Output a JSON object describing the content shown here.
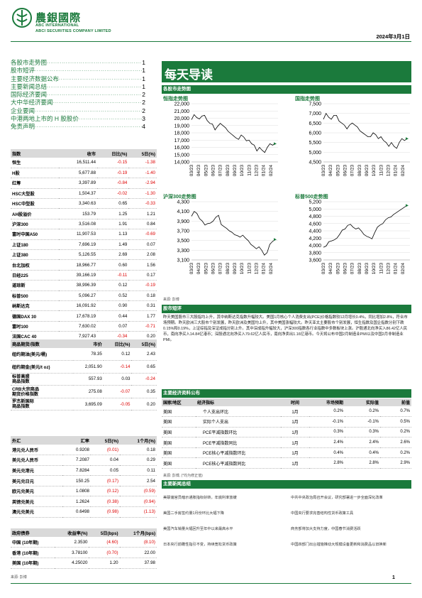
{
  "header": {
    "logo_cn": "農銀國際",
    "logo_en1": "ABC INTERNATIONAL",
    "logo_en2": "ABCI SECURITIES COMPANY LIMITED",
    "date": "2024年3月1日"
  },
  "toc": [
    {
      "t": "各股市走势图",
      "p": "1"
    },
    {
      "t": "股市短评",
      "p": "1"
    },
    {
      "t": "主要经济数据公布",
      "p": "1"
    },
    {
      "t": "主要新闻总结",
      "p": "1"
    },
    {
      "t": "国际经济要闻",
      "p": "2"
    },
    {
      "t": "大中华经济要闻",
      "p": "2"
    },
    {
      "t": "企业要闻",
      "p": "2"
    },
    {
      "t": "中港两地上市的 H 股股价",
      "p": "3"
    },
    {
      "t": "免责声明",
      "p": "4"
    }
  ],
  "index_table": {
    "headers": [
      "指数",
      "收市",
      "日比(%)",
      "5日(%)"
    ],
    "rows": [
      [
        "恒生",
        "16,511.44",
        "-0.15",
        "-1.38"
      ],
      [
        "H股",
        "5,677.88",
        "-0.19",
        "-1.40"
      ],
      [
        "红筹",
        "3,397.89",
        "-0.84",
        "-2.94"
      ],
      [
        "HSC大型股",
        "1,504.37",
        "-0.02",
        "-1.30"
      ],
      [
        "HSC中型股",
        "3,340.63",
        "0.65",
        "-0.33"
      ],
      [
        "AH股溢价",
        "153.79",
        "1.25",
        "1.21"
      ],
      [
        "沪深300",
        "3,516.08",
        "1.91",
        "0.84"
      ],
      [
        "富时中国A50",
        "11,907.53",
        "1.13",
        "-0.69"
      ],
      [
        "上证180",
        "7,696.19",
        "1.49",
        "0.07"
      ],
      [
        "上证380",
        "5,126.55",
        "2.69",
        "2.08"
      ],
      [
        "台北加权",
        "18,966.77",
        "0.60",
        "1.56"
      ],
      [
        "日经225",
        "39,166.19",
        "-0.11",
        "0.17"
      ],
      [
        "道琼斯",
        "38,996.39",
        "0.12",
        "-0.19"
      ],
      [
        "标普500",
        "5,096.27",
        "0.52",
        "0.18"
      ],
      [
        "纳斯达克",
        "16,091.92",
        "0.90",
        "0.31"
      ],
      [
        "德国DAX 30",
        "17,678.19",
        "0.44",
        "1.77"
      ],
      [
        "富时100",
        "7,630.02",
        "0.07",
        "-0.71"
      ],
      [
        "法国CAC 40",
        "7,927.43",
        "-0.34",
        "0.20"
      ]
    ]
  },
  "commodity_table": {
    "headers": [
      "商品期货/指数",
      "市价",
      "日比(%)",
      "5日(%)"
    ],
    "rows": [
      [
        "纽约期油(美元/桶)",
        "78.35",
        "0.12",
        "2.43"
      ],
      [
        "纽约期金(美元/t oz)",
        "2,051.90",
        "-0.14",
        "0.65"
      ],
      [
        "标普高盛\n商品指数",
        "557.93",
        "0.03",
        "-0.24"
      ],
      [
        "CRB大宗商品\n期货价格指数",
        "275.08",
        "-0.07",
        "0.35"
      ],
      [
        "罗杰斯国际\n商品指数",
        "3,695.09",
        "-0.05",
        "0.20"
      ]
    ]
  },
  "fx_table": {
    "headers": [
      "外汇",
      "汇率",
      "5日(%)",
      "1个月(%)"
    ],
    "rows": [
      [
        "港元兑人民币",
        "0.9208",
        "(0.01)",
        "0.18"
      ],
      [
        "美元兑人民币",
        "7.2087",
        "0.04",
        "0.29"
      ],
      [
        "美元兑港元",
        "7.8284",
        "0.05",
        "0.11"
      ],
      [
        "美元兑日元",
        "150.25",
        "(0.17)",
        "2.54"
      ],
      [
        "欧元兑美元",
        "1.0808",
        "(0.12)",
        "(0.59)"
      ],
      [
        "英镑兑美元",
        "1.2624",
        "(0.38)",
        "(0.94)"
      ],
      [
        "澳元兑美元",
        "0.6498",
        "(0.98)",
        "(1.13)"
      ]
    ]
  },
  "bond_table": {
    "headers": [
      "政府债券",
      "收益率(%)",
      "5日(bps)",
      "1个月(bps)"
    ],
    "rows": [
      [
        "中国 (10年期)",
        "2.3530",
        "(4.60)",
        "(8.10)"
      ],
      [
        "香港 (10年期)",
        "3.78100",
        "(0.70)",
        "22.00"
      ],
      [
        "美国 (10年期)",
        "4.25020",
        "1.20",
        "37.98"
      ]
    ]
  },
  "source_note": "来源: 彭博",
  "title": "每天导读",
  "charts_head": "各股市走势图",
  "charts": [
    {
      "title": "恒指走势图",
      "ylabels": [
        "22,000",
        "21,000",
        "20,000",
        "19,000",
        "18,000",
        "17,000",
        "16,000",
        "15,000",
        "14,000"
      ],
      "ylim": [
        14000,
        22000
      ],
      "xlabels": [
        "03/23",
        "04/23",
        "05/23",
        "06/23",
        "07/23",
        "08/23",
        "09/23",
        "10/23",
        "11/23",
        "12/23",
        "01/24",
        "02/24"
      ],
      "values": [
        19800,
        20500,
        20100,
        19900,
        20300,
        20400,
        19700,
        19300,
        19200,
        18400,
        18900,
        19300,
        19000,
        18700,
        18200,
        17900,
        17600,
        17300,
        17100,
        17700,
        17400,
        16900,
        17000,
        16500,
        16300,
        15500,
        16000,
        15600,
        15300,
        16000,
        16500,
        16300,
        16500
      ]
    },
    {
      "title": "国指走势图",
      "ylabels": [
        "7,500",
        "7,000",
        "6,500",
        "6,000",
        "5,500",
        "5,000",
        "4,500"
      ],
      "ylim": [
        4500,
        7500
      ],
      "xlabels": [
        "03/23",
        "04/23",
        "05/23",
        "06/23",
        "07/23",
        "08/23",
        "09/23",
        "10/23",
        "11/23",
        "12/23",
        "01/24",
        "02/24"
      ],
      "values": [
        6700,
        7000,
        6800,
        6700,
        6900,
        6900,
        6600,
        6500,
        6400,
        6200,
        6400,
        6500,
        6400,
        6300,
        6100,
        6000,
        5900,
        5800,
        5800,
        6000,
        5900,
        5700,
        5800,
        5600,
        5500,
        5300,
        5500,
        5300,
        5200,
        5500,
        5700,
        5600,
        5700
      ]
    },
    {
      "title": "沪深300走势图",
      "ylabels": [
        "4,300",
        "4,100",
        "3,900",
        "3,700",
        "3,500",
        "3,300",
        "3,100"
      ],
      "ylim": [
        3100,
        4300
      ],
      "xlabels": [
        "03/23",
        "04/23",
        "05/23",
        "06/23",
        "07/23",
        "08/23",
        "09/23",
        "10/23",
        "11/23",
        "12/23",
        "01/24",
        "02/24"
      ],
      "values": [
        4000,
        4100,
        4060,
        3950,
        3900,
        3820,
        3850,
        3860,
        3900,
        3980,
        4020,
        3830,
        3790,
        3750,
        3700,
        3670,
        3620,
        3600,
        3570,
        3610,
        3550,
        3500,
        3420,
        3380,
        3330,
        3370,
        3300,
        3200,
        3250,
        3420,
        3480,
        3520
      ]
    },
    {
      "title": "标普500走势图",
      "ylabels": [
        "5,200",
        "5,000",
        "4,800",
        "4,600",
        "4,400",
        "4,200",
        "4,000",
        "3,800",
        "3,600"
      ],
      "ylim": [
        3600,
        5200
      ],
      "xlabels": [
        "03/23",
        "04/23",
        "05/23",
        "06/23",
        "07/23",
        "08/23",
        "09/23",
        "10/23",
        "11/23",
        "12/23",
        "01/24",
        "02/24"
      ],
      "values": [
        3950,
        3980,
        4100,
        4120,
        4150,
        4200,
        4300,
        4420,
        4450,
        4550,
        4580,
        4500,
        4450,
        4480,
        4400,
        4300,
        4250,
        4220,
        4180,
        4350,
        4500,
        4560,
        4600,
        4700,
        4760,
        4780,
        4850,
        4900,
        4950,
        5000,
        5050,
        5096
      ]
    }
  ],
  "chart_source": "来源: 彭博",
  "commentary_head": "股市短评",
  "commentary": "昨天美国股市三大股指均上升，其中纳斯达克指数升幅较大。美国1月核心个人消费支出(PCE)价格指数较12月增长0.4%，同比增加2.8%，符合市场预期。昨天欧洲三大股市个别发展，昨天欧洲及美国均上升，其中美国涨幅较大。昨天亚太主要股市个别发展，恒生指数及国企指数分别下跌0.15%和0.19%，上证综指及深证成指分别上升。其中深成指升幅较大，沪深300指数各行业指数中多数板块上涨。沪股通北向净买入86.42亿人民币，南向净买入14.84亿港币；深股通北向净买入79.62亿人民币，南向净卖出1.16亿港币。今天将公布中国2月制造业PMI以及中国2月非制造业PMI。",
  "econ_head": "主要经济资料公布",
  "econ_table": {
    "headers": [
      "国家/地区",
      "经济指标",
      "时间",
      "市场预期",
      "实际值",
      "前值"
    ],
    "rows": [
      [
        "美国",
        "个人支出环比",
        "1月",
        "0.2%",
        "0.2%",
        "0.7%"
      ],
      [
        "美国",
        "实际个人支出",
        "1月",
        "-0.1%",
        "-0.1%",
        "0.5%"
      ],
      [
        "美国",
        "PCE平减指数环比",
        "1月",
        "0.3%",
        "0.3%",
        "0.2%"
      ],
      [
        "美国",
        "PCE平减指数同比",
        "1月",
        "2.4%",
        "2.4%",
        "2.6%"
      ],
      [
        "美国",
        "PCE核心平减指数环比",
        "1月",
        "0.4%",
        "0.4%",
        "0.2%"
      ],
      [
        "美国",
        "PCE核心平减指数同比",
        "1月",
        "2.8%",
        "2.8%",
        "2.9%"
      ]
    ]
  },
  "econ_note": "来源: 彭博, (*均为修正值)",
  "news_head": "主要新闻总结",
  "news_left": [
    "美联储官员暗示通胀指标好转，年底利率放缓",
    "美国二手房签约量1月份环比大幅下降",
    "美国汽车销量大幅回升至年中以来最高水平",
    "日本央行前瞻性指引不变，持续宽松货币政策"
  ],
  "news_right": [
    "中共中央政治局召开会议，研究部署进一步全面深化改革",
    "中国央行要求完善结构性货币政策工具",
    "商务部将加大支持力度，中国春节消费活跃",
    "中国四部门出台措施推动大规模设备更新和消费品以旧换新"
  ],
  "page_num": "1"
}
